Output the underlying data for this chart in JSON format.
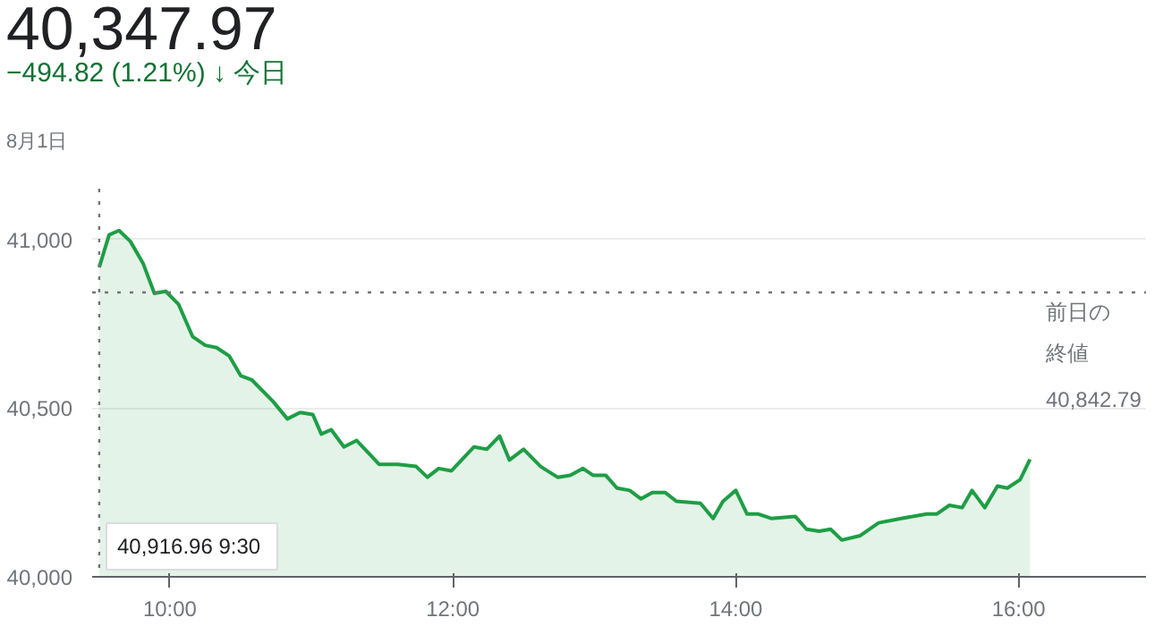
{
  "chart_data": {
    "type": "area",
    "title": "40,347.97",
    "subtitle": "−494.82 (1.21%) ↓ 今日",
    "annotations": [
      "8月1日",
      "40,916.96  9:30"
    ],
    "x": [
      9.5,
      9.57,
      9.64,
      9.72,
      9.81,
      9.89,
      9.97,
      10.06,
      10.16,
      10.25,
      10.33,
      10.42,
      10.5,
      10.58,
      10.73,
      10.83,
      10.92,
      11.01,
      11.07,
      11.14,
      11.23,
      11.32,
      11.48,
      11.61,
      11.74,
      11.82,
      11.9,
      11.99,
      12.09,
      12.15,
      12.24,
      12.33,
      12.4,
      12.5,
      12.62,
      12.74,
      12.83,
      12.92,
      12.99,
      13.08,
      13.16,
      13.25,
      13.33,
      13.41,
      13.5,
      13.58,
      13.75,
      13.84,
      13.91,
      14.0,
      14.08,
      14.16,
      14.25,
      14.42,
      14.5,
      14.59,
      14.67,
      14.75,
      14.88,
      15.01,
      15.17,
      15.35,
      15.42,
      15.51,
      15.6,
      15.67,
      15.76,
      15.85,
      15.92,
      16.01,
      16.08
    ],
    "series": [
      {
        "color": "#1e9e45",
        "values": [
          40916.96,
          41013,
          41026,
          40994,
          40929,
          40840,
          40846,
          40808,
          40712,
          40686,
          40679,
          40654,
          40596,
          40583,
          40519,
          40468,
          40487,
          40481,
          40423,
          40436,
          40385,
          40404,
          40333,
          40333,
          40327,
          40295,
          40321,
          40314,
          40359,
          40385,
          40378,
          40417,
          40346,
          40378,
          40327,
          40295,
          40301,
          40321,
          40301,
          40301,
          40263,
          40256,
          40231,
          40250,
          40250,
          40224,
          40218,
          40173,
          40224,
          40256,
          40186,
          40186,
          40173,
          40179,
          40141,
          40135,
          40141,
          40109,
          40122,
          40160,
          40173,
          40186,
          40186,
          40212,
          40205,
          40256,
          40205,
          40269,
          40263,
          40288,
          40347.97
        ]
      }
    ],
    "xlim": [
      9.45,
      16.9
    ],
    "ylim": [
      40000,
      41150
    ],
    "xticks": [
      {
        "value": 10,
        "label": "10:00"
      },
      {
        "value": 12,
        "label": "12:00"
      },
      {
        "value": 14,
        "label": "14:00"
      },
      {
        "value": 16,
        "label": "16:00"
      }
    ],
    "yticks": [
      {
        "value": 40000,
        "label": "40,000"
      },
      {
        "value": 40500,
        "label": "40,500"
      },
      {
        "value": 41000,
        "label": "41,000"
      }
    ],
    "grid": "y",
    "ref_lines": [
      {
        "axis": "y",
        "value": 40842.79,
        "label": "前日の終値 40,842.79",
        "line_style": "dotted"
      },
      {
        "axis": "x",
        "value": 9.5,
        "label": null,
        "line_style": "dotted"
      }
    ]
  }
}
